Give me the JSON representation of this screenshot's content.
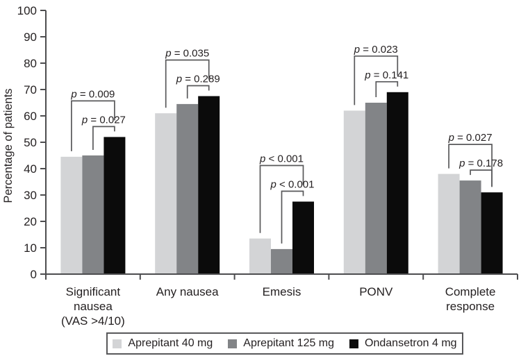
{
  "chart_data": {
    "type": "bar",
    "title": "",
    "xlabel": "",
    "ylabel": "Percentage of patients",
    "ylim": [
      0,
      100
    ],
    "yticks": [
      0,
      10,
      20,
      30,
      40,
      50,
      60,
      70,
      80,
      90,
      100
    ],
    "grid": false,
    "legend_position": "bottom",
    "categories": [
      {
        "label": "Significant nausea (VAS >4/10)",
        "label_lines": [
          "Significant",
          "nausea",
          "(VAS >4/10)"
        ]
      },
      {
        "label": "Any nausea",
        "label_lines": [
          "Any nausea"
        ]
      },
      {
        "label": "Emesis",
        "label_lines": [
          "Emesis"
        ]
      },
      {
        "label": "PONV",
        "label_lines": [
          "PONV"
        ]
      },
      {
        "label": "Complete response",
        "label_lines": [
          "Complete",
          "response"
        ]
      }
    ],
    "series": [
      {
        "name": "Aprepitant 40 mg",
        "color": "#d3d4d6",
        "values": [
          44.5,
          61.0,
          13.5,
          62.0,
          38.0
        ]
      },
      {
        "name": "Aprepitant 125 mg",
        "color": "#828487",
        "values": [
          45.0,
          64.5,
          9.5,
          65.0,
          35.5
        ]
      },
      {
        "name": "Ondansetron 4 mg",
        "color": "#0b0b0b",
        "values": [
          52.0,
          67.5,
          27.5,
          69.0,
          31.0
        ]
      }
    ],
    "p_value_brackets": [
      {
        "category": "Significant nausea (VAS >4/10)",
        "outer": {
          "pair": [
            0,
            2
          ],
          "label": "p = 0.009"
        },
        "inner": {
          "pair": [
            1,
            2
          ],
          "label": "p = 0.027"
        }
      },
      {
        "category": "Any nausea",
        "outer": {
          "pair": [
            0,
            2
          ],
          "label": "p = 0.035"
        },
        "inner": {
          "pair": [
            1,
            2
          ],
          "label": "p = 0.289"
        }
      },
      {
        "category": "Emesis",
        "outer": {
          "pair": [
            0,
            2
          ],
          "label": "p < 0.001"
        },
        "inner": {
          "pair": [
            1,
            2
          ],
          "label": "p < 0.001"
        }
      },
      {
        "category": "PONV",
        "outer": {
          "pair": [
            0,
            2
          ],
          "label": "p = 0.023"
        },
        "inner": {
          "pair": [
            1,
            2
          ],
          "label": "p = 0.141"
        }
      },
      {
        "category": "Complete response",
        "outer": {
          "pair": [
            0,
            2
          ],
          "label": "p = 0.027"
        },
        "inner": {
          "pair": [
            1,
            2
          ],
          "label": "p = 0.178"
        }
      }
    ]
  },
  "colors": {
    "axis": "#4d4d4f",
    "bracket": "#58585a",
    "text": "#231f20",
    "background": "#ffffff"
  }
}
